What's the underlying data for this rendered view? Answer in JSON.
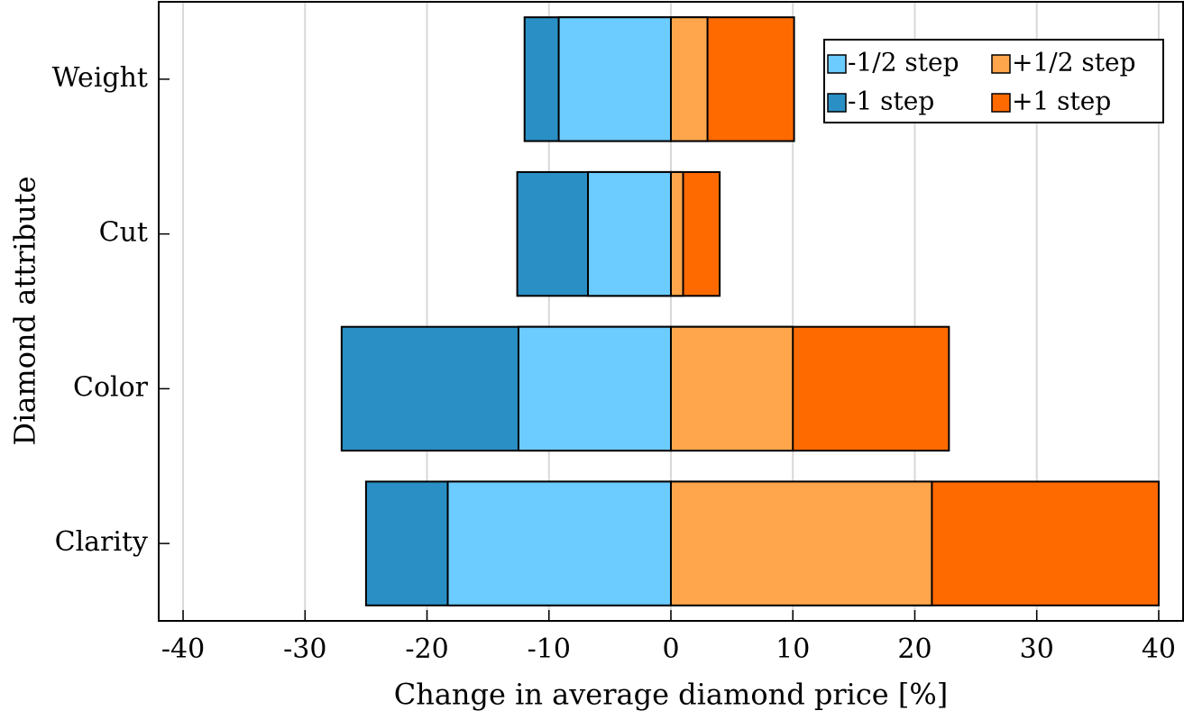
{
  "chart_data": {
    "type": "bar",
    "orientation": "horizontal",
    "xlabel": "Change in average diamond price [%]",
    "ylabel": "Diamond attribute",
    "categories": [
      "Weight",
      "Cut",
      "Color",
      "Clarity"
    ],
    "series": [
      {
        "name": "-1/2 step",
        "color": "#6ccbff",
        "values": [
          -9.2,
          -6.8,
          -12.5,
          -18.3
        ]
      },
      {
        "name": "+1/2 step",
        "color": "#ffa64c",
        "values": [
          3.0,
          1.0,
          10.0,
          21.4
        ]
      },
      {
        "name": "-1 step",
        "color": "#2a8fc4",
        "values": [
          -12.0,
          -12.6,
          -27.0,
          -25.0
        ]
      },
      {
        "name": "+1 step",
        "color": "#ff6a00",
        "values": [
          10.1,
          4.0,
          22.8,
          40.0
        ]
      }
    ],
    "xlim": [
      -42,
      42
    ],
    "xticks": [
      -40,
      -30,
      -20,
      -10,
      0,
      10,
      20,
      30,
      40
    ],
    "grid": true,
    "legend": "upper right"
  }
}
